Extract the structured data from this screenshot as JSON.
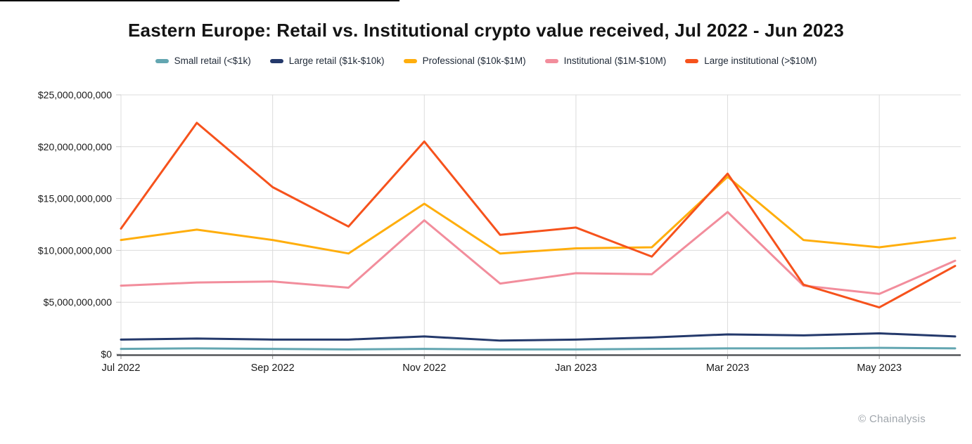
{
  "page": {
    "title": "Eastern Europe: Retail vs. Institutional crypto value received, Jul 2022 - Jun 2023",
    "watermark": "© Chainalysis"
  },
  "chart_data": {
    "type": "line",
    "title": "Eastern Europe: Retail vs. Institutional crypto value received, Jul 2022 - Jun 2023",
    "x": [
      "Jul 2022",
      "Aug 2022",
      "Sep 2022",
      "Oct 2022",
      "Nov 2022",
      "Dec 2022",
      "Jan 2023",
      "Feb 2023",
      "Mar 2023",
      "Apr 2023",
      "May 2023",
      "Jun 2023"
    ],
    "x_ticks": [
      {
        "index": 0,
        "label": "Jul 2022"
      },
      {
        "index": 2,
        "label": "Sep 2022"
      },
      {
        "index": 4,
        "label": "Nov 2022"
      },
      {
        "index": 6,
        "label": "Jan 2023"
      },
      {
        "index": 8,
        "label": "Mar 2023"
      },
      {
        "index": 10,
        "label": "May 2023"
      }
    ],
    "y_ticks": [
      {
        "value": 25,
        "label": "$25,000,000,000"
      },
      {
        "value": 20,
        "label": "$20,000,000,000"
      },
      {
        "value": 15,
        "label": "$15,000,000,000"
      },
      {
        "value": 10,
        "label": "$10,000,000,000"
      },
      {
        "value": 5,
        "label": "$5,000,000,000"
      },
      {
        "value": 0,
        "label": "$0"
      }
    ],
    "ylim_billions": [
      0,
      25
    ],
    "y_unit": "USD billions",
    "grid": true,
    "legend_position": "top",
    "series": [
      {
        "id": "small-retail",
        "name": "Small retail (<$1k)",
        "color": "#63A6B1",
        "values_billions": [
          0.5,
          0.55,
          0.5,
          0.45,
          0.5,
          0.45,
          0.45,
          0.5,
          0.55,
          0.55,
          0.6,
          0.55
        ]
      },
      {
        "id": "large-retail",
        "name": "Large retail ($1k-$10k)",
        "color": "#24396B",
        "values_billions": [
          1.4,
          1.5,
          1.4,
          1.4,
          1.7,
          1.3,
          1.4,
          1.6,
          1.9,
          1.8,
          2.0,
          1.7
        ]
      },
      {
        "id": "professional",
        "name": "Professional ($10k-$1M)",
        "color": "#FFAE0D",
        "values_billions": [
          11.0,
          12.0,
          11.0,
          9.7,
          14.5,
          9.7,
          10.2,
          10.3,
          17.1,
          11.0,
          10.3,
          11.2
        ]
      },
      {
        "id": "institutional",
        "name": "Institutional ($1M-$10M)",
        "color": "#F28D9C",
        "values_billions": [
          6.6,
          6.9,
          7.0,
          6.4,
          12.9,
          6.8,
          7.8,
          7.7,
          13.7,
          6.6,
          5.8,
          9.0
        ]
      },
      {
        "id": "large-institutional",
        "name": "Large institutional (>$10M)",
        "color": "#F6521C",
        "values_billions": [
          12.1,
          22.3,
          16.1,
          12.3,
          20.5,
          11.5,
          12.2,
          9.4,
          17.4,
          6.7,
          4.5,
          8.5
        ]
      }
    ]
  }
}
